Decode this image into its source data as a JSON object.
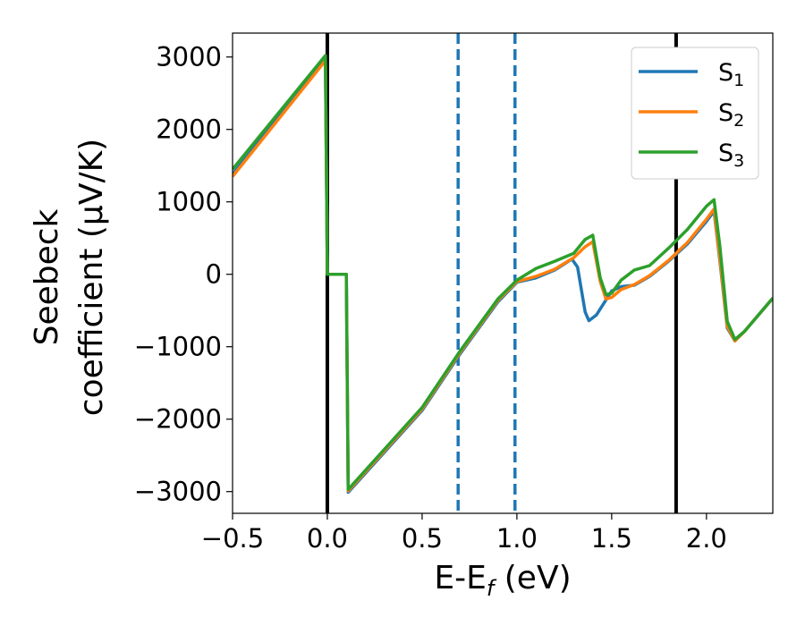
{
  "chart_data": {
    "type": "line",
    "xlabel": "E-E",
    "xlabel_sub": "f",
    "xlabel_unit": " (eV)",
    "ylabel_line1": "Seebeck",
    "ylabel_line2": "coefficient  (μV/K)",
    "xlim": [
      -0.5,
      2.35
    ],
    "ylim": [
      -3300,
      3330
    ],
    "x_ticks": [
      -0.5,
      0.0,
      0.5,
      1.0,
      1.5,
      2.0
    ],
    "x_tick_labels": [
      "−0.5",
      "0.0",
      "0.5",
      "1.0",
      "1.5",
      "2.0"
    ],
    "y_ticks": [
      -3000,
      -2000,
      -1000,
      0,
      1000,
      2000,
      3000
    ],
    "y_tick_labels": [
      "−3000",
      "−2000",
      "−1000",
      "0",
      "1000",
      "2000",
      "3000"
    ],
    "grid": false,
    "legend_position": "top-right",
    "vlines": [
      {
        "x": 0.0,
        "style": "solid",
        "color": "#000000"
      },
      {
        "x": 1.84,
        "style": "solid",
        "color": "#000000"
      },
      {
        "x": 0.69,
        "style": "dashed",
        "color": "#1f77b4"
      },
      {
        "x": 0.99,
        "style": "dashed",
        "color": "#1f77b4"
      }
    ],
    "series": [
      {
        "name": "S",
        "sub": "1",
        "color": "#1f77b4",
        "points": [
          [
            -0.5,
            1380
          ],
          [
            -0.01,
            2980
          ],
          [
            0.0,
            0
          ],
          [
            0.1,
            0
          ],
          [
            0.11,
            -3010
          ],
          [
            0.5,
            -1880
          ],
          [
            0.7,
            -1100
          ],
          [
            0.9,
            -380
          ],
          [
            1.0,
            -110
          ],
          [
            1.1,
            -50
          ],
          [
            1.2,
            60
          ],
          [
            1.29,
            210
          ],
          [
            1.32,
            100
          ],
          [
            1.36,
            -520
          ],
          [
            1.38,
            -640
          ],
          [
            1.42,
            -560
          ],
          [
            1.5,
            -230
          ],
          [
            1.55,
            -170
          ],
          [
            1.62,
            -150
          ],
          [
            1.7,
            -30
          ],
          [
            1.8,
            180
          ],
          [
            1.9,
            420
          ],
          [
            2.0,
            730
          ],
          [
            2.04,
            870
          ],
          [
            2.07,
            200
          ],
          [
            2.11,
            -740
          ],
          [
            2.15,
            -920
          ],
          [
            2.2,
            -790
          ],
          [
            2.35,
            -330
          ]
        ]
      },
      {
        "name": "S",
        "sub": "2",
        "color": "#ff7f0e",
        "points": [
          [
            -0.5,
            1350
          ],
          [
            -0.01,
            2950
          ],
          [
            0.0,
            0
          ],
          [
            0.1,
            0
          ],
          [
            0.11,
            -2990
          ],
          [
            0.5,
            -1860
          ],
          [
            0.7,
            -1080
          ],
          [
            0.9,
            -360
          ],
          [
            1.0,
            -100
          ],
          [
            1.1,
            -30
          ],
          [
            1.2,
            70
          ],
          [
            1.3,
            230
          ],
          [
            1.36,
            380
          ],
          [
            1.4,
            450
          ],
          [
            1.44,
            -100
          ],
          [
            1.47,
            -340
          ],
          [
            1.5,
            -320
          ],
          [
            1.55,
            -210
          ],
          [
            1.62,
            -140
          ],
          [
            1.7,
            -20
          ],
          [
            1.8,
            190
          ],
          [
            1.9,
            440
          ],
          [
            2.0,
            760
          ],
          [
            2.04,
            900
          ],
          [
            2.07,
            230
          ],
          [
            2.11,
            -720
          ],
          [
            2.15,
            -920
          ],
          [
            2.2,
            -790
          ],
          [
            2.35,
            -330
          ]
        ]
      },
      {
        "name": "S",
        "sub": "3",
        "color": "#2ca02c",
        "points": [
          [
            -0.5,
            1450
          ],
          [
            -0.01,
            3020
          ],
          [
            0.0,
            0
          ],
          [
            0.1,
            0
          ],
          [
            0.11,
            -2970
          ],
          [
            0.5,
            -1840
          ],
          [
            0.7,
            -1060
          ],
          [
            0.9,
            -340
          ],
          [
            1.0,
            -80
          ],
          [
            1.1,
            80
          ],
          [
            1.2,
            180
          ],
          [
            1.3,
            290
          ],
          [
            1.36,
            480
          ],
          [
            1.4,
            540
          ],
          [
            1.44,
            -50
          ],
          [
            1.47,
            -280
          ],
          [
            1.5,
            -260
          ],
          [
            1.55,
            -80
          ],
          [
            1.62,
            60
          ],
          [
            1.7,
            120
          ],
          [
            1.8,
            360
          ],
          [
            1.9,
            620
          ],
          [
            2.0,
            940
          ],
          [
            2.04,
            1030
          ],
          [
            2.07,
            400
          ],
          [
            2.11,
            -650
          ],
          [
            2.15,
            -900
          ],
          [
            2.2,
            -790
          ],
          [
            2.35,
            -330
          ]
        ]
      }
    ]
  }
}
